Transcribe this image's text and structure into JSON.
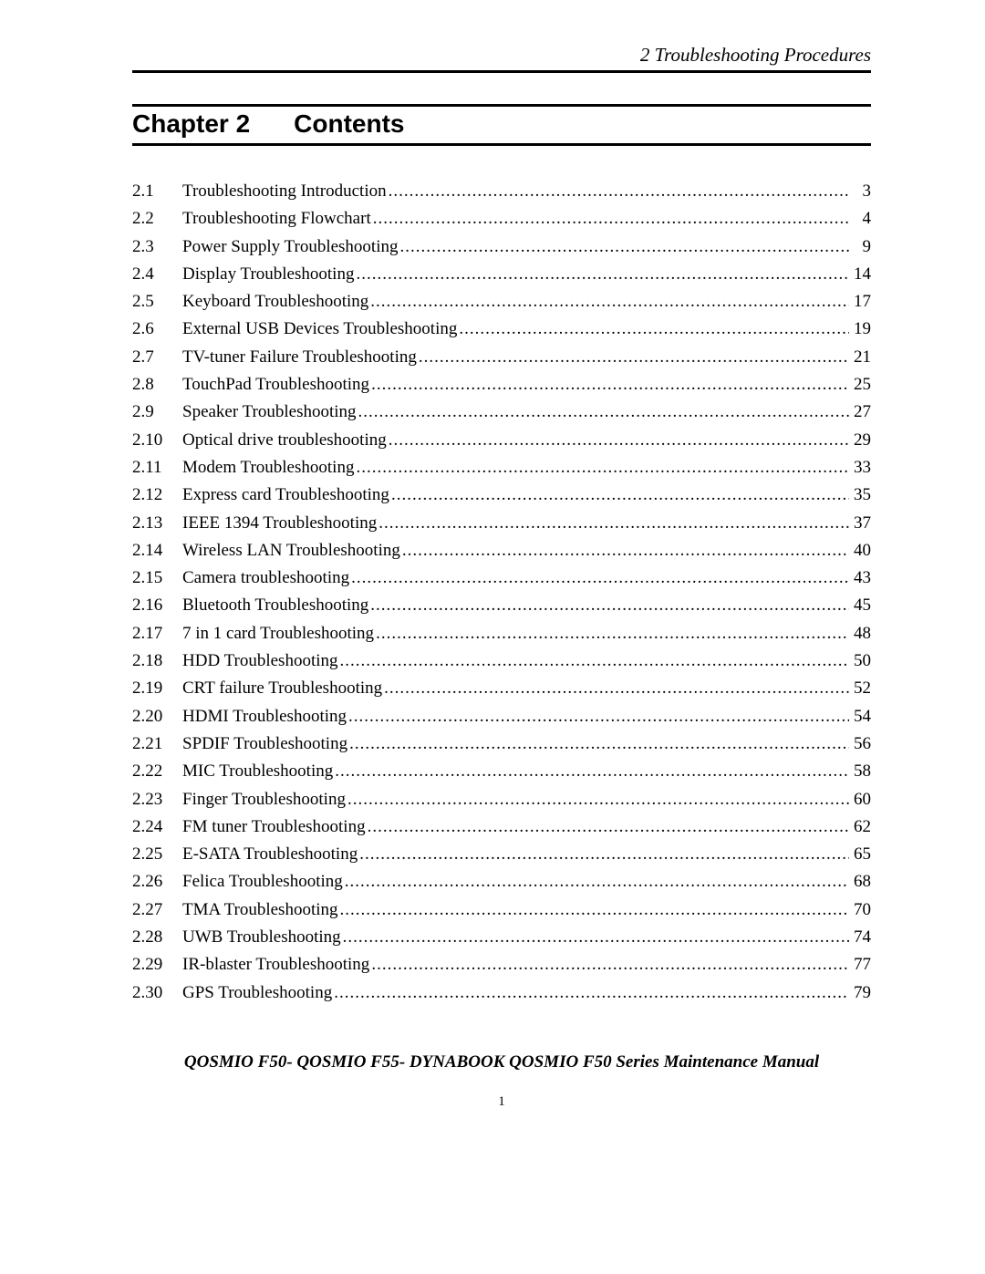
{
  "header": {
    "right_text": "2 Troubleshooting Procedures"
  },
  "chapter_heading": {
    "chapter_label": "Chapter 2",
    "contents_label": "Contents"
  },
  "toc": {
    "entries": [
      {
        "num": "2.1",
        "title": "Troubleshooting Introduction",
        "page": "3"
      },
      {
        "num": "2.2",
        "title": "Troubleshooting Flowchart ",
        "page": "4"
      },
      {
        "num": "2.3",
        "title": "Power Supply Troubleshooting",
        "page": "9"
      },
      {
        "num": "2.4",
        "title": "Display Troubleshooting",
        "page": "14"
      },
      {
        "num": "2.5",
        "title": "Keyboard Troubleshooting",
        "page": "17"
      },
      {
        "num": "2.6",
        "title": "External USB Devices Troubleshooting",
        "page": "19"
      },
      {
        "num": "2.7",
        "title": "TV-tuner Failure Troubleshooting",
        "page": "21"
      },
      {
        "num": "2.8",
        "title": "TouchPad Troubleshooting ",
        "page": "25"
      },
      {
        "num": "2.9",
        "title": "Speaker Troubleshooting ",
        "page": "27"
      },
      {
        "num": "2.10",
        "title": "Optical drive troubleshooting ",
        "page": "29"
      },
      {
        "num": "2.11",
        "title": "Modem Troubleshooting ",
        "page": "33"
      },
      {
        "num": "2.12",
        "title": "Express card Troubleshooting",
        "page": "35"
      },
      {
        "num": "2.13",
        "title": "IEEE 1394 Troubleshooting",
        "page": "37"
      },
      {
        "num": "2.14",
        "title": "Wireless LAN Troubleshooting ",
        "page": "40"
      },
      {
        "num": "2.15",
        "title": "Camera troubleshooting ",
        "page": "43"
      },
      {
        "num": "2.16",
        "title": "Bluetooth Troubleshooting",
        "page": " 45"
      },
      {
        "num": "2.17",
        "title": "7 in 1 card Troubleshooting",
        "page": "48"
      },
      {
        "num": "2.18",
        "title": "HDD Troubleshooting",
        "page": "50"
      },
      {
        "num": "2.19",
        "title": "CRT failure Troubleshooting ",
        "page": " 52"
      },
      {
        "num": "2.20",
        "title": "HDMI Troubleshooting ",
        "page": "54"
      },
      {
        "num": "2.21",
        "title": "SPDIF Troubleshooting ",
        "page": " 56"
      },
      {
        "num": "2.22",
        "title": "MIC Troubleshooting ",
        "page": " 58"
      },
      {
        "num": "2.23",
        "title": "Finger Troubleshooting ",
        "page": " 60"
      },
      {
        "num": "2.24",
        "title": "FM tuner Troubleshooting ",
        "page": " 62"
      },
      {
        "num": "2.25",
        "title": "E-SATA Troubleshooting ",
        "page": " 65"
      },
      {
        "num": "2.26",
        "title": "Felica Troubleshooting ",
        "page": " 68"
      },
      {
        "num": "2.27",
        "title": "TMA Troubleshooting ",
        "page": " 70"
      },
      {
        "num": "2.28",
        "title": "UWB Troubleshooting ",
        "page": " 74"
      },
      {
        "num": "2.29",
        "title": "IR-blaster Troubleshooting ",
        "page": " 77"
      },
      {
        "num": "2.30",
        "title": "GPS Troubleshooting ",
        "page": " 79"
      }
    ]
  },
  "footer": {
    "manual_title": "QOSMIO F50- QOSMIO F55- DYNABOOK QOSMIO F50 Series Maintenance Manual",
    "page_number": "1"
  },
  "style": {
    "colors": {
      "text": "#000000",
      "background": "#ffffff",
      "rule": "#000000"
    },
    "fonts": {
      "heading_family": "Arial",
      "body_family": "Times New Roman",
      "heading_size_pt": 21,
      "body_size_pt": 14,
      "header_size_pt": 16,
      "footer_size_pt": 14
    },
    "leader_char": "."
  }
}
